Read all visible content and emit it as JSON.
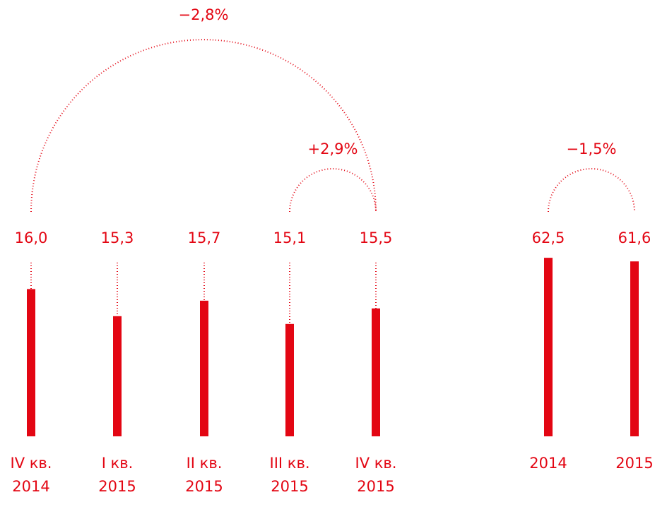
{
  "chart_data": [
    {
      "type": "bar",
      "color": "#e30613",
      "categories": [
        [
          "IV кв.",
          "2014"
        ],
        [
          "I кв.",
          "2015"
        ],
        [
          "II кв.",
          "2015"
        ],
        [
          "III кв.",
          "2015"
        ],
        [
          "IV кв.",
          "2015"
        ]
      ],
      "values": [
        16.0,
        15.3,
        15.7,
        15.1,
        15.5
      ],
      "value_labels": [
        "16,0",
        "15,3",
        "15,7",
        "15,1",
        "15,5"
      ],
      "ylim": [
        12.2,
        16.9
      ],
      "annotations": [
        "−2,8%",
        "+2,9%"
      ]
    },
    {
      "type": "bar",
      "color": "#e30613",
      "categories": [
        [
          "2014"
        ],
        [
          "2015"
        ]
      ],
      "values": [
        62.5,
        61.6
      ],
      "value_labels": [
        "62,5",
        "61,6"
      ],
      "ylim": [
        18,
        63.4
      ],
      "annotations": [
        "−1,5%"
      ]
    }
  ]
}
